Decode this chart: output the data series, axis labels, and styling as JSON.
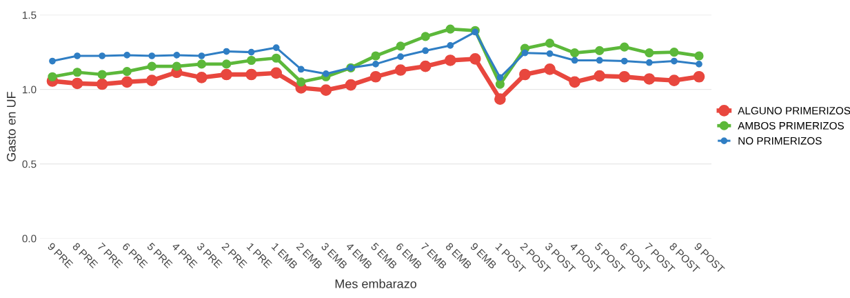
{
  "chart_data": {
    "type": "line",
    "xlabel": "Mes embarazo",
    "ylabel": "Gasto en UF",
    "categories": [
      "9 PRE",
      "8 PRE",
      "7 PRE",
      "6 PRE",
      "5 PRE",
      "4 PRE",
      "3 PRE",
      "2 PRE",
      "1 PRE",
      "1 EMB",
      "2 EMB",
      "3 EMB",
      "4 EMB",
      "5 EMB",
      "6 EMB",
      "7 EMB",
      "8 EMB",
      "9 EMB",
      "1 POST",
      "2 POST",
      "3 POST",
      "4 POST",
      "5 POST",
      "6 POST",
      "7 POST",
      "8 POST",
      "9 POST"
    ],
    "series": [
      {
        "name": "ALGUNO PRIMERIZOS",
        "color": "#e8473e",
        "values": [
          1.056,
          1.04,
          1.035,
          1.05,
          1.06,
          1.115,
          1.08,
          1.1,
          1.1,
          1.11,
          1.01,
          0.995,
          1.03,
          1.085,
          1.13,
          1.155,
          1.195,
          1.205,
          0.935,
          1.1,
          1.135,
          1.05,
          1.09,
          1.085,
          1.07,
          1.06,
          1.085
        ]
      },
      {
        "name": "AMBOS PRIMERIZOS",
        "color": "#5cb83a",
        "values": [
          1.085,
          1.115,
          1.1,
          1.12,
          1.155,
          1.155,
          1.17,
          1.17,
          1.195,
          1.21,
          1.05,
          1.085,
          1.145,
          1.225,
          1.29,
          1.355,
          1.405,
          1.395,
          1.035,
          1.275,
          1.31,
          1.245,
          1.26,
          1.285,
          1.245,
          1.25,
          1.225
        ]
      },
      {
        "name": "NO PRIMERIZOS",
        "color": "#2f7ec4",
        "values": [
          1.19,
          1.225,
          1.225,
          1.23,
          1.225,
          1.23,
          1.225,
          1.255,
          1.25,
          1.28,
          1.135,
          1.105,
          1.145,
          1.17,
          1.22,
          1.26,
          1.295,
          1.385,
          1.08,
          1.245,
          1.24,
          1.195,
          1.195,
          1.19,
          1.18,
          1.19,
          1.17
        ]
      }
    ],
    "ylim": [
      0,
      1.5
    ],
    "yticks": [
      {
        "value": 0,
        "label": "0.0"
      },
      {
        "value": 0.5,
        "label": "0.5"
      },
      {
        "value": 1.0,
        "label": "1.0"
      },
      {
        "value": 1.5,
        "label": "1.5"
      }
    ],
    "grid": "y",
    "legend": "right",
    "marker": "circle",
    "line_style": "solid"
  }
}
